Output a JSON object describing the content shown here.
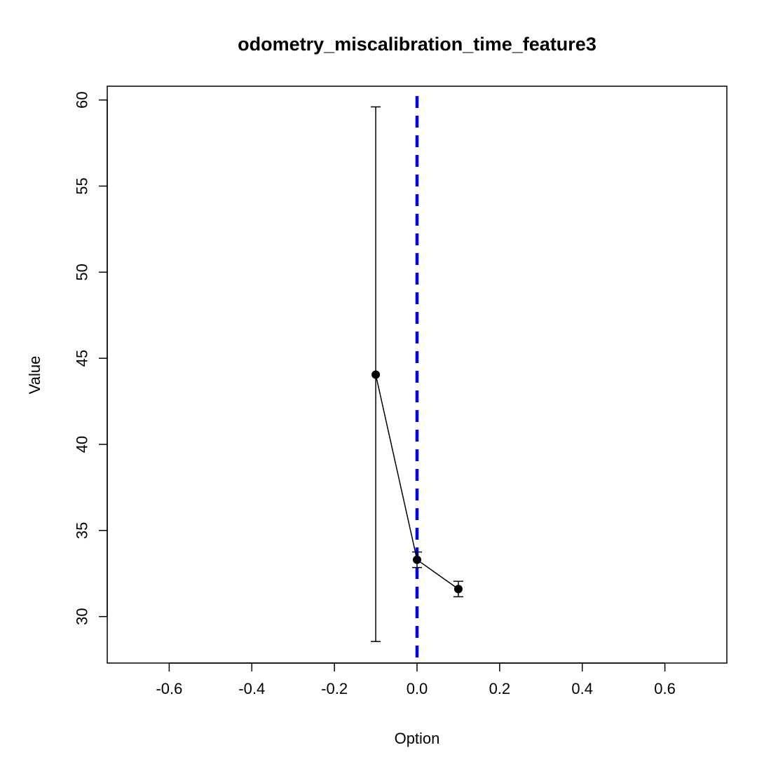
{
  "chart_data": {
    "type": "line",
    "title": "odometry_miscalibration_time_feature3",
    "xlabel": "Option",
    "ylabel": "Value",
    "xlim": [
      -0.75,
      0.75
    ],
    "ylim": [
      27.3,
      60.8
    ],
    "x_ticks": [
      -0.6,
      -0.4,
      -0.2,
      0.0,
      0.2,
      0.4,
      0.6
    ],
    "x_tick_labels": [
      "-0.6",
      "-0.4",
      "-0.2",
      "0.0",
      "0.2",
      "0.4",
      "0.6"
    ],
    "y_ticks": [
      30,
      35,
      40,
      45,
      50,
      55,
      60
    ],
    "y_tick_labels": [
      "30",
      "35",
      "40",
      "45",
      "50",
      "55",
      "60"
    ],
    "grid": false,
    "series": [
      {
        "x": [
          -0.1,
          0.0,
          0.1
        ],
        "y": [
          44.05,
          33.3,
          31.6
        ],
        "lower": [
          28.55,
          32.85,
          31.15
        ],
        "upper": [
          59.6,
          33.75,
          32.05
        ],
        "color": "#000000"
      }
    ],
    "reference_line": {
      "x": 0.0,
      "color": "#0000ff",
      "style": "dashed"
    }
  }
}
